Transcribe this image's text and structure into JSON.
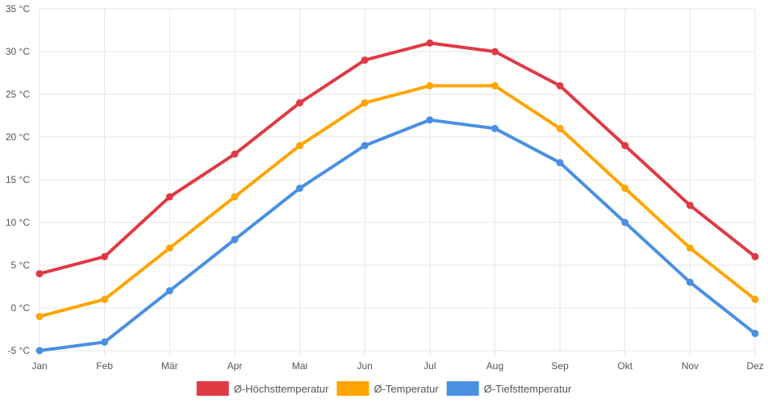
{
  "chart_data": {
    "type": "line",
    "categories": [
      "Jan",
      "Feb",
      "Mär",
      "Apr",
      "Mai",
      "Jun",
      "Jul",
      "Aug",
      "Sep",
      "Okt",
      "Nov",
      "Dez"
    ],
    "ylim": [
      -5,
      35
    ],
    "ystep": 5,
    "yunit": " °C",
    "grid": true,
    "legend_position": "bottom",
    "series": [
      {
        "name": "Ø-Höchsttemperatur",
        "color": "#e03a45",
        "values": [
          4,
          6,
          13,
          18,
          24,
          29,
          31,
          30,
          26,
          19,
          12,
          6
        ]
      },
      {
        "name": "Ø-Temperatur",
        "color": "#ffa500",
        "values": [
          -1,
          1,
          7,
          13,
          19,
          24,
          26,
          26,
          21,
          14,
          7,
          1
        ]
      },
      {
        "name": "Ø-Tiefsttemperatur",
        "color": "#4a90e2",
        "values": [
          -5,
          -4,
          2,
          8,
          14,
          19,
          22,
          21,
          17,
          10,
          3,
          -3
        ]
      }
    ]
  }
}
